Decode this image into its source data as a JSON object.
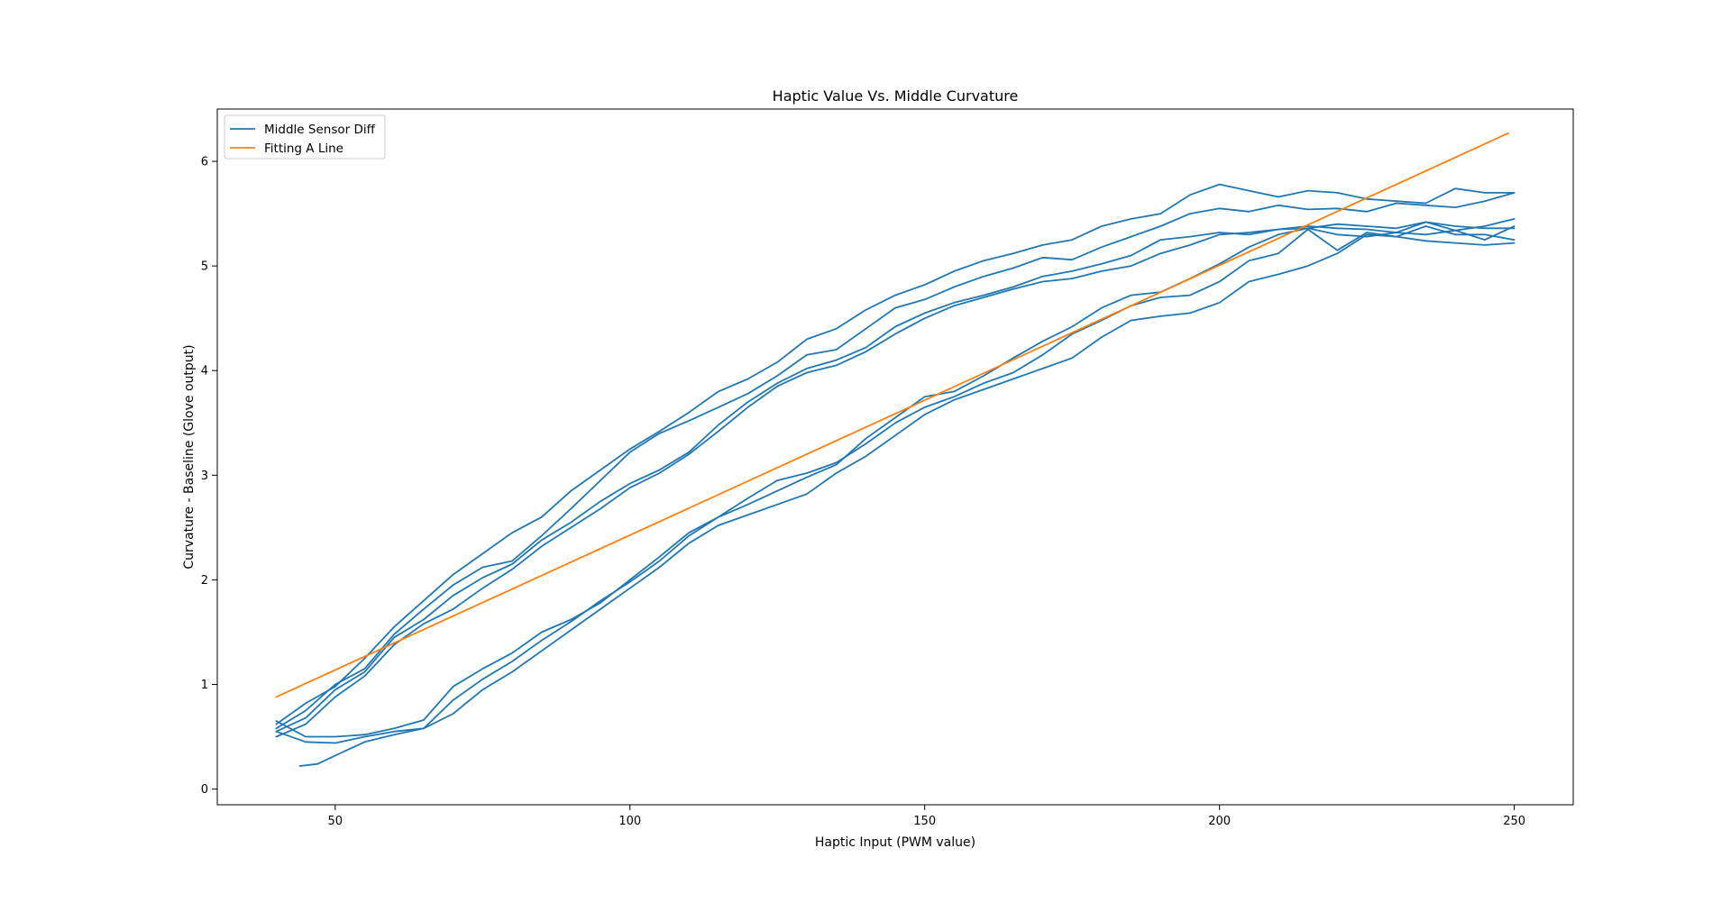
{
  "chart_data": {
    "type": "line",
    "title": "Haptic Value Vs. Middle Curvature",
    "xlabel": "Haptic Input (PWM value)",
    "ylabel": "Curvature - Baseline (Glove output)",
    "xlim": [
      30,
      260
    ],
    "ylim": [
      -0.15,
      6.5
    ],
    "x_ticks": [
      50,
      100,
      150,
      200,
      250
    ],
    "y_ticks": [
      0,
      1,
      2,
      3,
      4,
      5,
      6
    ],
    "grid": false,
    "legend_position": "top-left",
    "colors": {
      "sensor": "#1f77b4",
      "fit": "#ff7f0e"
    },
    "legend": [
      {
        "label": "Middle Sensor Diff",
        "color": "#1f77b4"
      },
      {
        "label": "Fitting A Line",
        "color": "#ff7f0e"
      }
    ],
    "series": [
      {
        "name": "Middle Sensor Diff",
        "color": "#1f77b4",
        "x": [
          40,
          45,
          50,
          55,
          60,
          65,
          70,
          75,
          80,
          85,
          90,
          95,
          100,
          105,
          110,
          115,
          120,
          125,
          130,
          135,
          140,
          145,
          150,
          155,
          160,
          165,
          170,
          175,
          180,
          185,
          190,
          195,
          200,
          205,
          210,
          215,
          220,
          225,
          230,
          235,
          240,
          245,
          250
        ],
        "y": [
          0.62,
          0.82,
          0.98,
          1.25,
          1.55,
          1.8,
          2.05,
          2.25,
          2.45,
          2.6,
          2.85,
          3.05,
          3.25,
          3.42,
          3.6,
          3.8,
          3.92,
          4.08,
          4.3,
          4.4,
          4.58,
          4.72,
          4.82,
          4.95,
          5.05,
          5.12,
          5.2,
          5.25,
          5.38,
          5.45,
          5.5,
          5.68,
          5.78,
          5.72,
          5.66,
          5.72,
          5.7,
          5.64,
          5.62,
          5.6,
          5.74,
          5.7,
          5.7
        ]
      },
      {
        "name": "",
        "color": "#1f77b4",
        "x": [
          40,
          45,
          50,
          55,
          60,
          65,
          70,
          75,
          80,
          85,
          90,
          95,
          100,
          105,
          110,
          115,
          120,
          125,
          130,
          135,
          140,
          145,
          150,
          155,
          160,
          165,
          170,
          175,
          180,
          185,
          190,
          195,
          200,
          205,
          210,
          215,
          220,
          225,
          230,
          235,
          240,
          245,
          250
        ],
        "y": [
          0.58,
          0.75,
          1.0,
          1.15,
          1.48,
          1.72,
          1.95,
          2.12,
          2.18,
          2.42,
          2.68,
          2.95,
          3.22,
          3.4,
          3.52,
          3.65,
          3.78,
          3.95,
          4.15,
          4.2,
          4.4,
          4.6,
          4.68,
          4.8,
          4.9,
          4.98,
          5.08,
          5.06,
          5.18,
          5.28,
          5.38,
          5.5,
          5.55,
          5.52,
          5.58,
          5.54,
          5.55,
          5.52,
          5.6,
          5.58,
          5.56,
          5.62,
          5.7
        ]
      },
      {
        "name": "",
        "color": "#1f77b4",
        "x": [
          40,
          45,
          50,
          55,
          60,
          65,
          70,
          75,
          80,
          85,
          90,
          95,
          100,
          105,
          110,
          115,
          120,
          125,
          130,
          135,
          140,
          145,
          150,
          155,
          160,
          165,
          170,
          175,
          180,
          185,
          190,
          195,
          200,
          205,
          210,
          215,
          220,
          225,
          230,
          235,
          240,
          245,
          250
        ],
        "y": [
          0.55,
          0.68,
          0.95,
          1.12,
          1.45,
          1.62,
          1.85,
          2.02,
          2.15,
          2.38,
          2.55,
          2.75,
          2.92,
          3.05,
          3.22,
          3.48,
          3.7,
          3.88,
          4.02,
          4.1,
          4.22,
          4.42,
          4.55,
          4.65,
          4.72,
          4.8,
          4.9,
          4.95,
          5.02,
          5.1,
          5.25,
          5.28,
          5.32,
          5.3,
          5.35,
          5.38,
          5.36,
          5.35,
          5.32,
          5.3,
          5.34,
          5.38,
          5.45
        ]
      },
      {
        "name": "",
        "color": "#1f77b4",
        "x": [
          40,
          45,
          50,
          55,
          60,
          65,
          70,
          75,
          80,
          85,
          90,
          95,
          100,
          105,
          110,
          115,
          120,
          125,
          130,
          135,
          140,
          145,
          150,
          155,
          160,
          165,
          170,
          175,
          180,
          185,
          190,
          195,
          200,
          205,
          210,
          215,
          220,
          225,
          230,
          235,
          240,
          245,
          250
        ],
        "y": [
          0.5,
          0.62,
          0.88,
          1.08,
          1.38,
          1.58,
          1.72,
          1.92,
          2.1,
          2.32,
          2.5,
          2.68,
          2.88,
          3.02,
          3.2,
          3.42,
          3.65,
          3.85,
          3.98,
          4.05,
          4.18,
          4.35,
          4.5,
          4.62,
          4.7,
          4.78,
          4.85,
          4.88,
          4.95,
          5.0,
          5.12,
          5.2,
          5.3,
          5.32,
          5.35,
          5.36,
          5.4,
          5.38,
          5.36,
          5.42,
          5.38,
          5.36,
          5.36
        ]
      },
      {
        "name": "",
        "color": "#1f77b4",
        "x": [
          40,
          45,
          50,
          55,
          60,
          65,
          70,
          75,
          80,
          85,
          90,
          95,
          100,
          105,
          110,
          115,
          120,
          125,
          130,
          135,
          140,
          145,
          150,
          155,
          160,
          165,
          170,
          175,
          180,
          185,
          190,
          195,
          200,
          205,
          210,
          215,
          220,
          225,
          230,
          235,
          240,
          245,
          250
        ],
        "y": [
          0.65,
          0.5,
          0.5,
          0.52,
          0.58,
          0.66,
          0.98,
          1.15,
          1.3,
          1.5,
          1.62,
          1.78,
          2.0,
          2.22,
          2.45,
          2.6,
          2.72,
          2.85,
          2.98,
          3.1,
          3.35,
          3.55,
          3.75,
          3.8,
          3.95,
          4.12,
          4.28,
          4.42,
          4.6,
          4.72,
          4.75,
          4.88,
          5.02,
          5.18,
          5.3,
          5.36,
          5.3,
          5.28,
          5.32,
          5.42,
          5.34,
          5.25,
          5.38
        ]
      },
      {
        "name": "",
        "color": "#1f77b4",
        "x": [
          40,
          45,
          50,
          55,
          60,
          65,
          70,
          75,
          80,
          85,
          90,
          95,
          100,
          105,
          110,
          115,
          120,
          125,
          130,
          135,
          140,
          145,
          150,
          155,
          160,
          165,
          170,
          175,
          180,
          185,
          190,
          195,
          200,
          205,
          210,
          215,
          220,
          225,
          230,
          235,
          240,
          245,
          250
        ],
        "y": [
          0.55,
          0.45,
          0.44,
          0.5,
          0.55,
          0.58,
          0.85,
          1.05,
          1.22,
          1.42,
          1.6,
          1.8,
          1.98,
          2.18,
          2.42,
          2.6,
          2.78,
          2.95,
          3.02,
          3.12,
          3.3,
          3.5,
          3.65,
          3.75,
          3.88,
          3.98,
          4.15,
          4.35,
          4.48,
          4.62,
          4.7,
          4.72,
          4.85,
          5.05,
          5.12,
          5.35,
          5.15,
          5.32,
          5.28,
          5.38,
          5.3,
          5.3,
          5.25
        ]
      },
      {
        "name": "",
        "color": "#1f77b4",
        "x": [
          44,
          47,
          50,
          55,
          60,
          65,
          70,
          75,
          80,
          85,
          90,
          95,
          100,
          105,
          110,
          115,
          120,
          125,
          130,
          135,
          140,
          145,
          150,
          155,
          160,
          165,
          170,
          175,
          180,
          185,
          190,
          195,
          200,
          205,
          210,
          215,
          220,
          225,
          230,
          235,
          240,
          245,
          250
        ],
        "y": [
          0.22,
          0.24,
          0.32,
          0.45,
          0.52,
          0.58,
          0.72,
          0.95,
          1.12,
          1.32,
          1.52,
          1.72,
          1.92,
          2.12,
          2.35,
          2.52,
          2.62,
          2.72,
          2.82,
          3.02,
          3.18,
          3.38,
          3.58,
          3.72,
          3.82,
          3.92,
          4.02,
          4.12,
          4.32,
          4.48,
          4.52,
          4.55,
          4.65,
          4.85,
          4.92,
          5.0,
          5.12,
          5.3,
          5.28,
          5.24,
          5.22,
          5.2,
          5.22
        ]
      },
      {
        "name": "Fitting A Line",
        "color": "#ff7f0e",
        "x": [
          40,
          249
        ],
        "y": [
          0.88,
          6.27
        ]
      }
    ]
  }
}
